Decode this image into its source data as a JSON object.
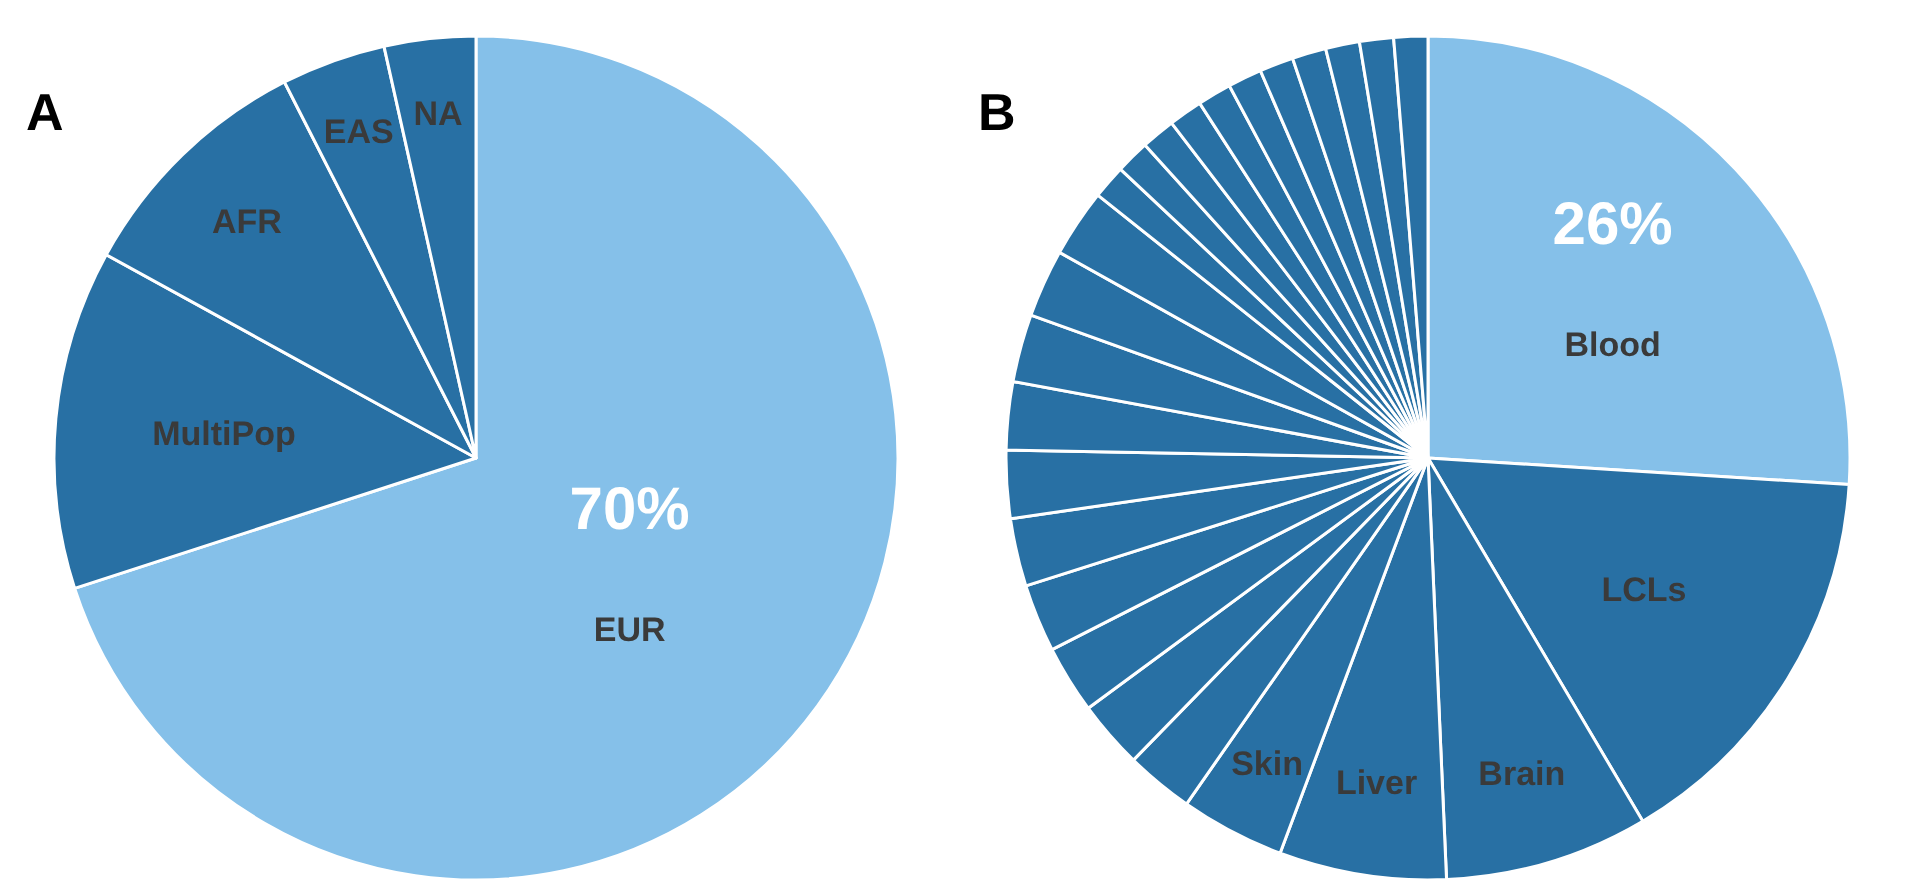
{
  "chart_data": [
    {
      "type": "pie",
      "title": "A",
      "categories": [
        "EUR",
        "MultiPop",
        "AFR",
        "EAS",
        "NA"
      ],
      "values": [
        70,
        13,
        9.5,
        4,
        3.5
      ],
      "colors": [
        "#85c0e9",
        "#2870a4",
        "#2870a4",
        "#2870a4",
        "#2870a4"
      ],
      "value_labels": [
        "70%",
        null,
        null,
        null,
        null
      ]
    },
    {
      "type": "pie",
      "title": "B",
      "categories": [
        "Blood",
        "LCLs",
        "Brain",
        "Liver",
        "Skin",
        null,
        null,
        null,
        null,
        null,
        null,
        null,
        null,
        null,
        null,
        null,
        null,
        null,
        null,
        null,
        null,
        null,
        null,
        null,
        null,
        null
      ],
      "values": [
        26,
        15.5,
        7.8,
        6.4,
        4,
        2.6,
        2.6,
        2.6,
        2.6,
        2.6,
        2.6,
        2.6,
        2.6,
        2.6,
        2.6,
        1.3,
        1.3,
        1.3,
        1.3,
        1.3,
        1.3,
        1.3,
        1.3,
        1.3,
        1.3,
        1.3
      ],
      "colors": [
        "#85c0e9",
        "#2870a4",
        "#2870a4",
        "#2870a4",
        "#2870a4",
        "#2870a4",
        "#2870a4",
        "#2870a4",
        "#2870a4",
        "#2870a4",
        "#2870a4",
        "#2870a4",
        "#2870a4",
        "#2870a4",
        "#2870a4",
        "#2870a4",
        "#2870a4",
        "#2870a4",
        "#2870a4",
        "#2870a4",
        "#2870a4",
        "#2870a4",
        "#2870a4",
        "#2870a4",
        "#2870a4",
        "#2870a4"
      ],
      "value_labels": [
        "26%",
        null,
        null,
        null,
        null,
        null,
        null,
        null,
        null,
        null,
        null,
        null,
        null,
        null,
        null,
        null,
        null,
        null,
        null,
        null,
        null,
        null,
        null,
        null,
        null,
        null
      ]
    }
  ]
}
